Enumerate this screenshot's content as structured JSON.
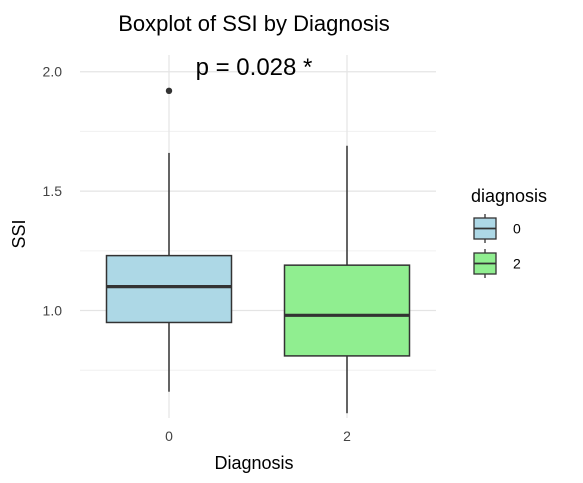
{
  "chart_data": {
    "type": "boxplot",
    "title": "Boxplot of SSI by Diagnosis",
    "annotation": "p = 0.028 *",
    "xlabel": "Diagnosis",
    "ylabel": "SSI",
    "categories": [
      "0",
      "2"
    ],
    "ylim": [
      0.55,
      2.07
    ],
    "yticks": [
      1.0,
      1.5,
      2.0
    ],
    "ytick_labels": [
      "1.0",
      "1.5",
      "2.0"
    ],
    "grid": true,
    "legend": {
      "title": "diagnosis",
      "placement": "right",
      "entries": [
        "0",
        "2"
      ]
    },
    "series": [
      {
        "category": "0",
        "whisker_low": 0.66,
        "q1": 0.95,
        "median": 1.1,
        "q3": 1.23,
        "whisker_high": 1.66,
        "outliers": [
          1.92
        ],
        "color": "#add8e6"
      },
      {
        "category": "2",
        "whisker_low": 0.57,
        "q1": 0.81,
        "median": 0.98,
        "q3": 1.19,
        "whisker_high": 1.69,
        "outliers": [],
        "color": "#90ee90"
      }
    ]
  }
}
